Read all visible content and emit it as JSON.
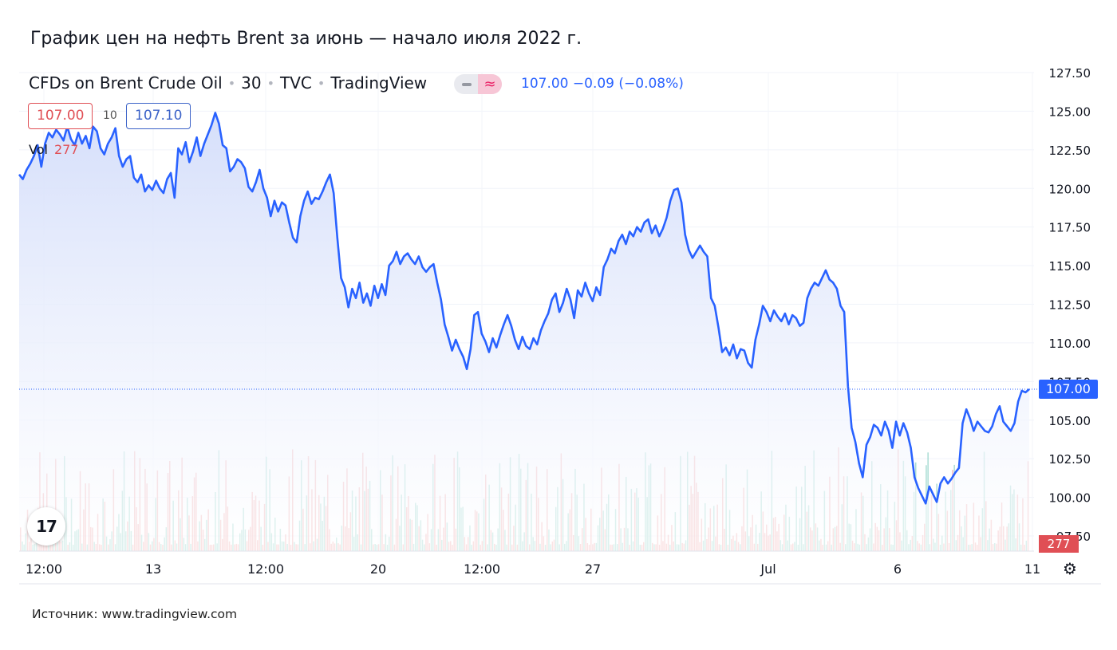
{
  "page": {
    "title": "График цен на нефть Brent за июнь — начало июля 2022 г.",
    "source": "Источник: www.tradingview.com"
  },
  "header": {
    "symbol": "CFDs on Brent Crude Oil",
    "interval": "30",
    "exchange": "TVC",
    "platform": "TradingView",
    "change_readout": "107.00  −0.09 (−0.08%)",
    "toggle_icon": "≈"
  },
  "quote": {
    "bid": "107.00",
    "spread": "10",
    "ask": "107.10",
    "volume_label": "Vol",
    "volume_value": "277"
  },
  "logo": {
    "text": "17"
  },
  "tags": {
    "last_price": "107.00",
    "last_volume": "277"
  },
  "icons": {
    "settings": "gear-icon",
    "logo": "tradingview-logo-icon"
  },
  "colors": {
    "line": "#2962ff",
    "area_top": "#d6e0fb",
    "area_bottom": "#ffffff",
    "vol_up": "#8ed1c6",
    "vol_down": "#f0a3a6",
    "neg": "#e04f55"
  },
  "chart_data": {
    "type": "area",
    "y_ticks": [
      "127.50",
      "125.00",
      "122.50",
      "120.00",
      "117.50",
      "115.00",
      "112.50",
      "110.00",
      "107.50",
      "105.00",
      "102.50",
      "100.00",
      "97.50"
    ],
    "x_ticks": [
      "12:00",
      "13",
      "12:00",
      "20",
      "12:00",
      "27",
      "Jul",
      "6",
      "11"
    ],
    "ylim": [
      97.5,
      127.5
    ],
    "last_price": 107.0,
    "series": [
      {
        "values": [
          120.9,
          120.6,
          121.2,
          121.6,
          122.1,
          122.8,
          121.4,
          122.9,
          123.6,
          123.3,
          123.8,
          123.5,
          123.1,
          124.0,
          123.2,
          122.8,
          123.6,
          122.9,
          123.4,
          122.6,
          124.0,
          123.7,
          122.6,
          122.2,
          122.9,
          123.3,
          123.9,
          122.1,
          121.4,
          121.9,
          122.1,
          120.7,
          120.4,
          120.9,
          119.8,
          120.2,
          119.9,
          120.5,
          120.0,
          119.7,
          120.6,
          121.0,
          119.4,
          122.6,
          122.2,
          123.0,
          121.7,
          122.4,
          123.3,
          122.1,
          122.9,
          123.5,
          124.1,
          124.9,
          124.2,
          122.8,
          122.6,
          121.1,
          121.4,
          121.9,
          121.7,
          121.3,
          120.1,
          119.8,
          120.4,
          121.2,
          120.0,
          119.4,
          118.2,
          119.2,
          118.5,
          119.1,
          118.9,
          117.8,
          116.8,
          116.5,
          118.2,
          119.2,
          119.8,
          119.0,
          119.4,
          119.3,
          119.8,
          120.4,
          120.9,
          119.7,
          116.8,
          114.2,
          113.6,
          112.3,
          113.5,
          112.9,
          113.9,
          112.6,
          113.2,
          112.4,
          113.7,
          112.9,
          113.8,
          113.1,
          115.0,
          115.3,
          115.9,
          115.1,
          115.6,
          115.8,
          115.4,
          115.1,
          115.6,
          114.9,
          114.6,
          114.9,
          115.1,
          113.9,
          112.8,
          111.2,
          110.4,
          109.5,
          110.2,
          109.6,
          109.1,
          108.3,
          109.6,
          111.8,
          112.0,
          110.6,
          110.1,
          109.4,
          110.3,
          109.7,
          110.5,
          111.2,
          111.8,
          111.1,
          110.2,
          109.6,
          110.4,
          109.8,
          109.6,
          110.3,
          109.9,
          110.8,
          111.4,
          111.9,
          112.8,
          113.2,
          112.0,
          112.6,
          113.5,
          112.8,
          111.6,
          113.4,
          113.0,
          113.9,
          113.2,
          112.7,
          113.6,
          113.1,
          114.9,
          115.4,
          116.1,
          115.8,
          116.6,
          117.0,
          116.4,
          117.2,
          116.9,
          117.5,
          117.2,
          117.8,
          118.0,
          117.1,
          117.6,
          116.9,
          117.4,
          118.1,
          119.2,
          119.9,
          120.0,
          119.1,
          117.0,
          116.0,
          115.5,
          115.9,
          116.3,
          115.9,
          115.6,
          112.9,
          112.4,
          111.0,
          109.4,
          109.7,
          109.2,
          109.9,
          109.0,
          109.6,
          109.5,
          108.7,
          108.4,
          110.2,
          111.2,
          112.4,
          112.0,
          111.4,
          112.1,
          111.7,
          111.4,
          111.9,
          111.2,
          111.8,
          111.6,
          111.1,
          111.3,
          112.9,
          113.5,
          113.9,
          113.7,
          114.2,
          114.7,
          114.1,
          113.9,
          113.5,
          112.4,
          112.0,
          107.2,
          104.5,
          103.6,
          102.2,
          101.3,
          103.4,
          103.9,
          104.7,
          104.5,
          104.0,
          104.9,
          104.3,
          103.2,
          104.9,
          104.0,
          104.8,
          104.2,
          103.2,
          101.3,
          100.6,
          100.1,
          99.6,
          100.7,
          100.2,
          99.7,
          100.9,
          101.3,
          100.9,
          101.2,
          101.6,
          101.9,
          104.8,
          105.7,
          105.1,
          104.3,
          104.9,
          104.6,
          104.3,
          104.2,
          104.6,
          105.4,
          105.9,
          104.9,
          104.6,
          104.3,
          104.8,
          106.2,
          106.9,
          106.8,
          107.0
        ]
      }
    ]
  }
}
